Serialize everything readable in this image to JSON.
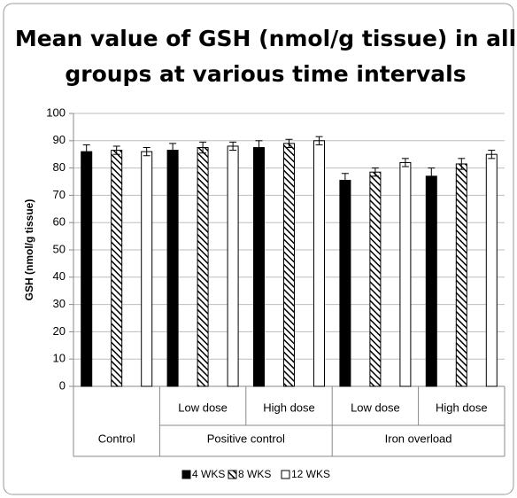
{
  "chart_data": {
    "type": "bar",
    "title": [
      "Mean value of  GSH (nmol/g tissue) in all",
      "groups at various time intervals"
    ],
    "y_label": "GSH (nmol/g tissue)",
    "groups": [
      {
        "name": "Control",
        "categories": [
          null
        ]
      },
      {
        "name": "Positive control",
        "categories": [
          "Low dose",
          "High dose"
        ]
      },
      {
        "name": "Iron overload",
        "categories": [
          "Low dose",
          "High dose"
        ]
      }
    ],
    "series": [
      {
        "name": "4 WKS",
        "color": "#000000",
        "hatch": false,
        "values": [
          86,
          86.5,
          87.5,
          75.5,
          77
        ],
        "errors": [
          2.5,
          2.5,
          2.5,
          2.5,
          3
        ]
      },
      {
        "name": "8 WKS",
        "color": "#000000",
        "hatch": true,
        "values": [
          86.5,
          87.5,
          89,
          78.5,
          81.5
        ],
        "errors": [
          1.5,
          2,
          1.5,
          1.5,
          2
        ]
      },
      {
        "name": "12 WKS",
        "color": "#ffffff",
        "hatch": false,
        "values": [
          86,
          88,
          90,
          82,
          85
        ],
        "errors": [
          1.5,
          1.5,
          1.5,
          1.5,
          1.5
        ]
      }
    ],
    "ylim": [
      0,
      100
    ],
    "yticks": [
      0,
      10,
      20,
      30,
      40,
      50,
      60,
      70,
      80,
      90,
      100
    ],
    "grid": true,
    "legend": "bottom"
  }
}
